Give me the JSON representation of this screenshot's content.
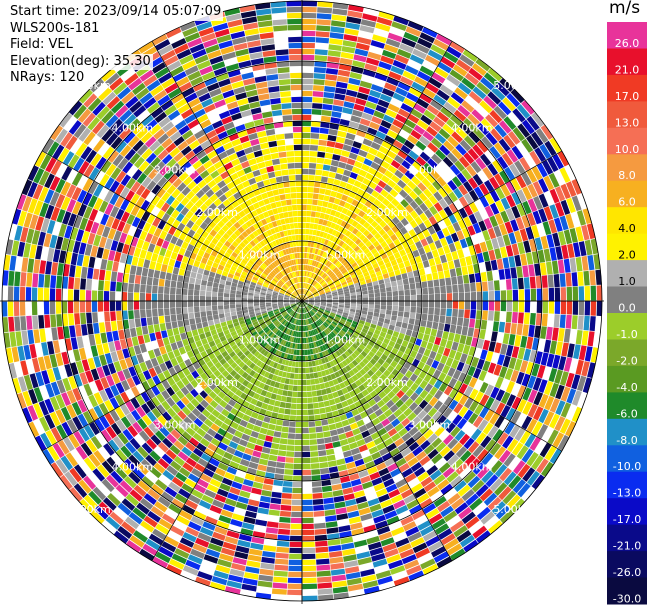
{
  "info": {
    "start_time": "Start time: 2023/09/14 05:07:09",
    "instrument": "WLS200s-181",
    "field": "Field: VEL",
    "elevation": "Elevation(deg): 35.30",
    "nrays": "NRays: 120"
  },
  "colorbar": {
    "unit": "m/s",
    "levels": [
      {
        "value": "26.0",
        "color": "#e8339a"
      },
      {
        "value": "21.0",
        "color": "#e8102c"
      },
      {
        "value": "17.0",
        "color": "#f03a24"
      },
      {
        "value": "13.0",
        "color": "#f05a3c"
      },
      {
        "value": "10.0",
        "color": "#f56f55"
      },
      {
        "value": "8.0",
        "color": "#f59a40"
      },
      {
        "value": "6.0",
        "color": "#f7b020"
      },
      {
        "value": "4.0",
        "color": "#ffe600"
      },
      {
        "value": "2.0",
        "color": "#fff200"
      },
      {
        "value": "1.0",
        "color": "#b0b0b0"
      },
      {
        "value": "0.0",
        "color": "#808080"
      },
      {
        "value": "-1.0",
        "color": "#9ccd2a"
      },
      {
        "value": "-2.0",
        "color": "#7ba82a"
      },
      {
        "value": "-4.0",
        "color": "#5a9a22"
      },
      {
        "value": "-6.0",
        "color": "#1f8a2a"
      },
      {
        "value": "-8.0",
        "color": "#2090c8"
      },
      {
        "value": "-10.0",
        "color": "#1060e0"
      },
      {
        "value": "-13.0",
        "color": "#0a2cf0"
      },
      {
        "value": "-17.0",
        "color": "#0a0ac8"
      },
      {
        "value": "-21.0",
        "color": "#0a0a8a"
      },
      {
        "value": "-26.0",
        "color": "#0a0a60"
      },
      {
        "value": "-30.0",
        "color": "#0a0a40"
      }
    ]
  },
  "chart_data": {
    "type": "heatmap",
    "projection": "polar PPI",
    "field": "VEL",
    "units": "m/s",
    "n_rays": 120,
    "range_rings_km": [
      "1.00km",
      "2.00km",
      "3.00km",
      "4.00km",
      "5.00km"
    ],
    "ring_label_text": {
      "1.00km": [
        "1.00km",
        "1.00km",
        "1.00km",
        "1.00km"
      ],
      "2.00km": [
        "2.00km",
        "2.00km",
        "2.00km",
        "2.00km"
      ],
      "3.00km": [
        "3.00km",
        "3.00km",
        "3.00km",
        "3.00km"
      ],
      "4.00km": [
        "4.00km",
        "4.00km",
        "4.00km",
        "4.00km"
      ],
      "5.00km": [
        "5.00km",
        "5.00km",
        "5.00km",
        "5.00km"
      ]
    },
    "spokes_deg": [
      0,
      30,
      60,
      90,
      120,
      150,
      180,
      210,
      240,
      270,
      300,
      330
    ],
    "pattern": "Coherent velocities within ~2 km: positive (yellow/orange) to the north, negative (green) to the south, near-zero (gray) band east-west; noisy random velocities beyond ~2 km"
  }
}
